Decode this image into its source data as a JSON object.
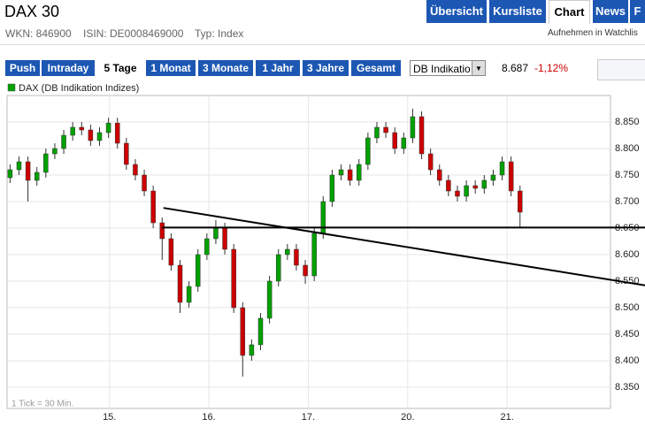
{
  "header": {
    "title": "DAX 30",
    "wkn": "WKN: 846900",
    "isin": "ISIN: DE0008469000",
    "typ": "Typ: Index",
    "watchlist": "Aufnehmen in Watchlis",
    "tabs": [
      "Übersicht",
      "Kursliste",
      "Chart",
      "News",
      "F"
    ],
    "active_tab": "Chart"
  },
  "toolbar": {
    "ranges": [
      "Push",
      "Intraday",
      "5 Tage",
      "1 Monat",
      "3 Monate",
      "1 Jahr",
      "3 Jahre",
      "Gesamt"
    ],
    "active_range": "5 Tage",
    "source": "DB Indikatio",
    "price": "8.687",
    "change": "-1,12%"
  },
  "chart_data": {
    "type": "candlestick",
    "legend": "DAX (DB Indikation Indizes)",
    "footnote": "1 Tick = 30 Min.",
    "up_color": "#00a000",
    "down_color": "#cc0000",
    "grid": true,
    "xlim": [
      -0.03,
      6.04
    ],
    "xticks": [
      {
        "value": 1,
        "label": "15."
      },
      {
        "value": 2,
        "label": "16."
      },
      {
        "value": 3,
        "label": "17."
      },
      {
        "value": 4,
        "label": "20."
      },
      {
        "value": 5,
        "label": "21."
      }
    ],
    "ylim": [
      8310,
      8900
    ],
    "yticks": [
      {
        "value": 8350,
        "label": "8.350"
      },
      {
        "value": 8400,
        "label": "8.400"
      },
      {
        "value": 8450,
        "label": "8.450"
      },
      {
        "value": 8500,
        "label": "8.500"
      },
      {
        "value": 8550,
        "label": "8.550"
      },
      {
        "value": 8600,
        "label": "8.600"
      },
      {
        "value": 8650,
        "label": "8.650"
      },
      {
        "value": 8700,
        "label": "8.700"
      },
      {
        "value": 8750,
        "label": "8.750"
      },
      {
        "value": 8800,
        "label": "8.800"
      },
      {
        "value": 8850,
        "label": "8.850"
      }
    ],
    "x": [
      0,
      0.09,
      0.18,
      0.27,
      0.36,
      0.45,
      0.54,
      0.63,
      0.72,
      0.81,
      0.9,
      0.99,
      1.08,
      1.17,
      1.26,
      1.35,
      1.44,
      1.53,
      1.62,
      1.71,
      1.8,
      1.89,
      1.98,
      2.07,
      2.16,
      2.25,
      2.34,
      2.43,
      2.52,
      2.61,
      2.7,
      2.79,
      2.88,
      2.97,
      3.06,
      3.15,
      3.24,
      3.33,
      3.42,
      3.51,
      3.6,
      3.69,
      3.78,
      3.87,
      3.96,
      4.05,
      4.14,
      4.23,
      4.32,
      4.41,
      4.5,
      4.59,
      4.68,
      4.77,
      4.86,
      4.95,
      5.04,
      5.13
    ],
    "open": [
      8745,
      8760,
      8775,
      8740,
      8755,
      8790,
      8800,
      8825,
      8840,
      8835,
      8815,
      8830,
      8848,
      8810,
      8770,
      8750,
      8720,
      8660,
      8630,
      8580,
      8510,
      8540,
      8600,
      8630,
      8650,
      8610,
      8500,
      8410,
      8430,
      8480,
      8550,
      8600,
      8610,
      8580,
      8560,
      8640,
      8700,
      8750,
      8760,
      8740,
      8770,
      8820,
      8840,
      8830,
      8800,
      8820,
      8860,
      8790,
      8760,
      8740,
      8720,
      8710,
      8730,
      8725,
      8740,
      8750,
      8775,
      8720
    ],
    "high": [
      8770,
      8785,
      8785,
      8765,
      8800,
      8810,
      8835,
      8850,
      8850,
      8845,
      8840,
      8858,
      8858,
      8820,
      8780,
      8760,
      8730,
      8670,
      8640,
      8590,
      8550,
      8610,
      8640,
      8665,
      8660,
      8620,
      8510,
      8440,
      8490,
      8560,
      8610,
      8620,
      8620,
      8590,
      8650,
      8710,
      8760,
      8770,
      8770,
      8780,
      8830,
      8850,
      8850,
      8840,
      8830,
      8875,
      8870,
      8800,
      8770,
      8750,
      8730,
      8740,
      8740,
      8750,
      8760,
      8785,
      8785,
      8730
    ],
    "low": [
      8735,
      8750,
      8700,
      8730,
      8745,
      8780,
      8790,
      8815,
      8825,
      8805,
      8805,
      8820,
      8800,
      8760,
      8740,
      8710,
      8650,
      8590,
      8570,
      8490,
      8500,
      8530,
      8590,
      8620,
      8600,
      8490,
      8370,
      8400,
      8420,
      8470,
      8540,
      8590,
      8570,
      8545,
      8550,
      8630,
      8690,
      8740,
      8730,
      8730,
      8760,
      8810,
      8820,
      8790,
      8790,
      8810,
      8780,
      8750,
      8730,
      8710,
      8700,
      8700,
      8715,
      8715,
      8730,
      8740,
      8710,
      8650
    ],
    "close": [
      8760,
      8775,
      8740,
      8755,
      8790,
      8800,
      8825,
      8840,
      8835,
      8815,
      8830,
      8848,
      8810,
      8770,
      8750,
      8720,
      8660,
      8630,
      8580,
      8510,
      8540,
      8600,
      8630,
      8650,
      8610,
      8500,
      8410,
      8430,
      8480,
      8550,
      8600,
      8610,
      8580,
      8560,
      8640,
      8700,
      8750,
      8760,
      8740,
      8770,
      8820,
      8840,
      8830,
      8800,
      8820,
      8860,
      8790,
      8760,
      8740,
      8720,
      8710,
      8730,
      8725,
      8740,
      8750,
      8775,
      8720,
      8680
    ],
    "lines": [
      {
        "x": [
          1.526,
          6.39
        ],
        "y": [
          8651,
          8651
        ]
      },
      {
        "x": [
          1.543,
          6.39
        ],
        "y": [
          8688,
          8542
        ]
      }
    ]
  }
}
